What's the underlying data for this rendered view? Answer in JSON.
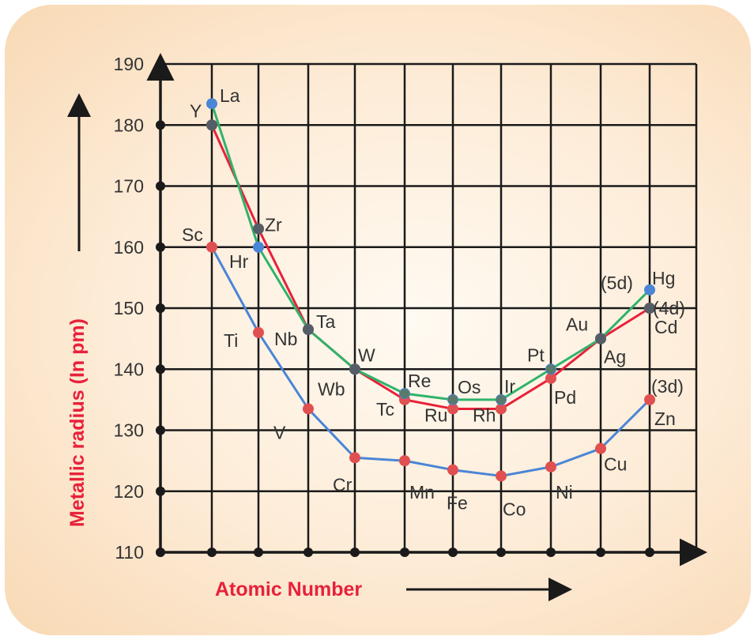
{
  "chart_data": {
    "type": "line",
    "xlabel": "Atomic Number",
    "ylabel": "Metallic radius (In pm)",
    "ylim": [
      110,
      190
    ],
    "yticks": [
      "190",
      "180",
      "170",
      "160",
      "150",
      "140",
      "130",
      "120",
      "110"
    ],
    "grid": true,
    "colors": {
      "3d": "#4a85d6",
      "4d": "#e8213a",
      "5d": "#2fb36a",
      "grid": "#1a1a1a"
    },
    "series": [
      {
        "name": "(3d)",
        "elements": [
          "Sc",
          "Ti",
          "V",
          "Cr",
          "Mn",
          "Fe",
          "Co",
          "Ni",
          "Cu",
          "Zn"
        ],
        "values": [
          160,
          146,
          133.5,
          125.5,
          125,
          123.5,
          122.5,
          124,
          127,
          135
        ]
      },
      {
        "name": "(4d)",
        "elements": [
          "Y",
          "Zr",
          "Nb",
          "Wb",
          "Tc",
          "Ru",
          "Rh",
          "Pd",
          "Ag",
          "Cd"
        ],
        "values": [
          180,
          163,
          146.5,
          140,
          135,
          133.5,
          133.5,
          138.5,
          145,
          150
        ]
      },
      {
        "name": "(5d)",
        "elements": [
          "La",
          "Hr",
          "Ta",
          "W",
          "Re",
          "Os",
          "Ir",
          "Pt",
          "Au",
          "Hg"
        ],
        "values": [
          183.5,
          160,
          146.5,
          140,
          136,
          135,
          135,
          140,
          145,
          153
        ]
      }
    ]
  }
}
